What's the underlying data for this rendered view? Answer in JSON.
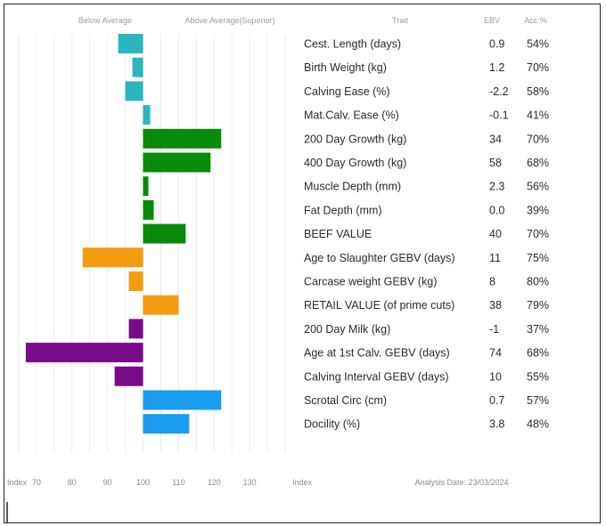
{
  "chart_data": {
    "type": "bar",
    "orientation": "horizontal",
    "headers": {
      "below": "Below Average",
      "above": "Above Average(Superior)",
      "trait": "Trait",
      "ebv": "EBV",
      "acc": "Acc %"
    },
    "xlabel_left": "Index",
    "xlabel_right": "Index",
    "analysis_date": "Analysis Date: 23/03/2024",
    "xlim": [
      62,
      141
    ],
    "baseline": 100,
    "ticks": [
      "70",
      "80",
      "90",
      "100",
      "110",
      "120",
      "130"
    ],
    "tick_values": [
      70,
      80,
      90,
      100,
      110,
      120,
      130
    ],
    "grid": true,
    "rows": [
      {
        "trait": "Cest. Length (days)",
        "ebv": "0.9",
        "acc": "54%",
        "index": 93,
        "color": "#2bb5bd"
      },
      {
        "trait": "Birth Weight (kg)",
        "ebv": "1.2",
        "acc": "70%",
        "index": 97,
        "color": "#2bb5bd"
      },
      {
        "trait": "Calving Ease (%)",
        "ebv": "-2.2",
        "acc": "58%",
        "index": 95,
        "color": "#2bb5bd"
      },
      {
        "trait": "Mat.Calv. Ease (%)",
        "ebv": "-0.1",
        "acc": "41%",
        "index": 102,
        "color": "#2bb5bd"
      },
      {
        "trait": "200 Day Growth (kg)",
        "ebv": "34",
        "acc": "70%",
        "index": 122,
        "color": "#0a8a0a"
      },
      {
        "trait": "400 Day Growth (kg)",
        "ebv": "58",
        "acc": "68%",
        "index": 119,
        "color": "#0a8a0a"
      },
      {
        "trait": "Muscle Depth (mm)",
        "ebv": "2.3",
        "acc": "56%",
        "index": 101.5,
        "color": "#0a8a0a"
      },
      {
        "trait": "Fat Depth (mm)",
        "ebv": "0.0",
        "acc": "39%",
        "index": 103,
        "color": "#0a8a0a"
      },
      {
        "trait": "BEEF VALUE",
        "ebv": "40",
        "acc": "70%",
        "index": 112,
        "color": "#0a8a0a"
      },
      {
        "trait": "Age to Slaughter GEBV (days)",
        "ebv": "11",
        "acc": "75%",
        "index": 83,
        "color": "#f39c12"
      },
      {
        "trait": "Carcase weight GEBV (kg)",
        "ebv": "8",
        "acc": "80%",
        "index": 96,
        "color": "#f39c12"
      },
      {
        "trait": "RETAIL VALUE (of prime cuts)",
        "ebv": "38",
        "acc": "79%",
        "index": 110,
        "color": "#f39c12"
      },
      {
        "trait": "200 Day Milk (kg)",
        "ebv": "-1",
        "acc": "37%",
        "index": 96,
        "color": "#7a0b8a"
      },
      {
        "trait": "Age at 1st Calv. GEBV (days)",
        "ebv": "74",
        "acc": "68%",
        "index": 67,
        "color": "#7a0b8a"
      },
      {
        "trait": "Calving Interval GEBV (days)",
        "ebv": "10",
        "acc": "55%",
        "index": 92,
        "color": "#7a0b8a"
      },
      {
        "trait": "Scrotal Circ (cm)",
        "ebv": "0.7",
        "acc": "57%",
        "index": 122,
        "color": "#1a9cf0"
      },
      {
        "trait": "Docility (%)",
        "ebv": "3.8",
        "acc": "48%",
        "index": 113,
        "color": "#1a9cf0"
      }
    ]
  }
}
